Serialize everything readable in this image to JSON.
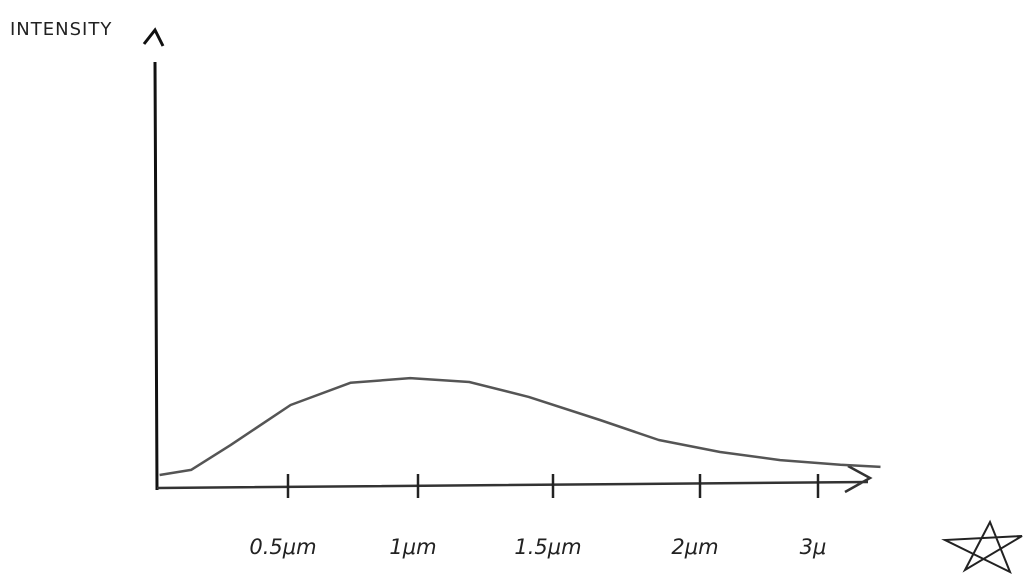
{
  "chart_data": {
    "type": "line",
    "y_label": "INTENSITY",
    "x": [
      0.01,
      0.13,
      0.28,
      0.51,
      0.74,
      0.97,
      1.19,
      1.41,
      1.66,
      1.86,
      2.17,
      2.68,
      3.19,
      3.53
    ],
    "series": [
      {
        "color": "#555555",
        "values": [
          2.8,
          4,
          9.8,
          19.2,
          24.4,
          25.5,
          24.6,
          21.1,
          15.7,
          11,
          8.2,
          6.3,
          5.2,
          4.7
        ]
      }
    ],
    "xlim": [
      0,
      3.6
    ],
    "xticks": [
      {
        "value": 0.5,
        "label": "0.5μm"
      },
      {
        "value": 1,
        "label": "1μm"
      },
      {
        "value": 1.5,
        "label": "1.5μm"
      },
      {
        "value": 2,
        "label": "2μm"
      },
      {
        "value": 3,
        "label": "3μ"
      }
    ],
    "ylim": [
      0,
      100
    ]
  }
}
